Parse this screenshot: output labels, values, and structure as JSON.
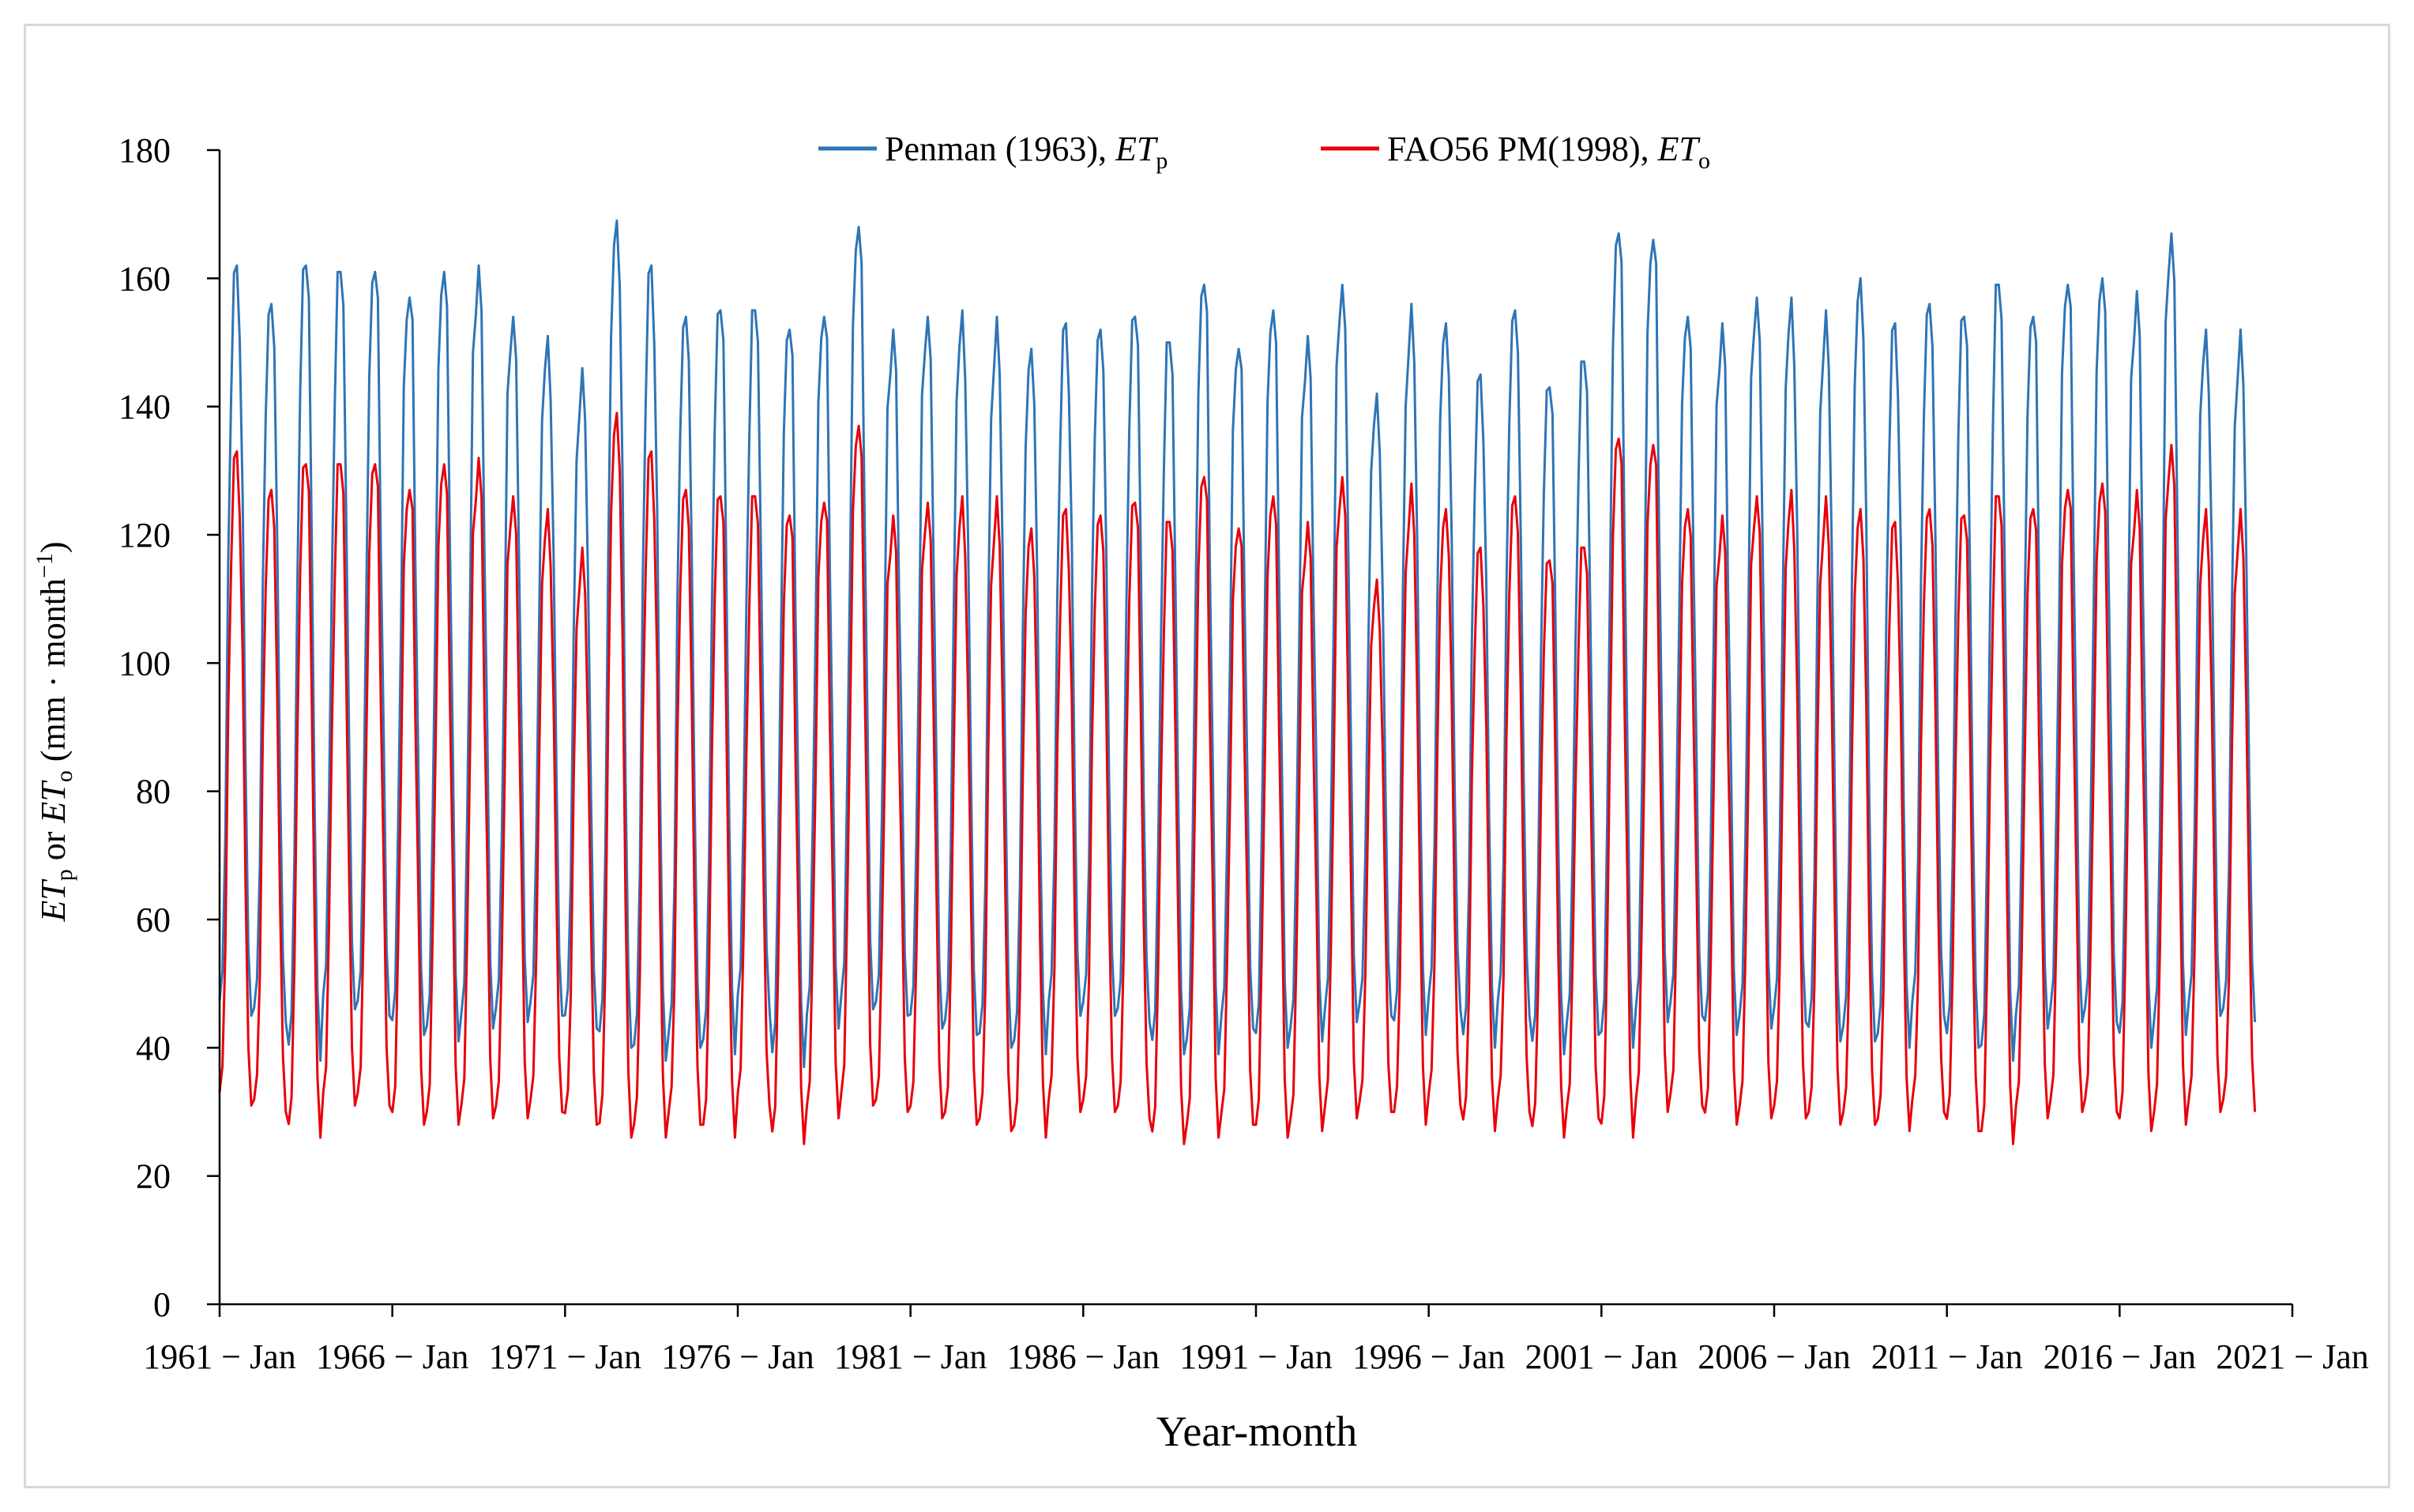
{
  "chart_data": {
    "type": "line",
    "title": "",
    "xlabel": "Year-month",
    "ylabel": {
      "part1": "ET",
      "sub1": "p",
      "part2": " or ",
      "part3": "ET",
      "sub2": "o",
      "part4": " (mm · month",
      "sup": "−1",
      "part5": ")"
    },
    "ylim": [
      0,
      180
    ],
    "yticks": [
      0,
      20,
      40,
      60,
      80,
      100,
      120,
      140,
      160,
      180
    ],
    "xlim_months": [
      0,
      720
    ],
    "xticks": [
      {
        "label": "1961 − Jan",
        "month_index": 0
      },
      {
        "label": "1966 − Jan",
        "month_index": 60
      },
      {
        "label": "1971 − Jan",
        "month_index": 120
      },
      {
        "label": "1976 − Jan",
        "month_index": 180
      },
      {
        "label": "1981 − Jan",
        "month_index": 240
      },
      {
        "label": "1986 − Jan",
        "month_index": 300
      },
      {
        "label": "1991 − Jan",
        "month_index": 360
      },
      {
        "label": "1996 − Jan",
        "month_index": 420
      },
      {
        "label": "2001 − Jan",
        "month_index": 480
      },
      {
        "label": "2006 − Jan",
        "month_index": 540
      },
      {
        "label": "2011 − Jan",
        "month_index": 600
      },
      {
        "label": "2016 − Jan",
        "month_index": 660
      },
      {
        "label": "2021 − Jan",
        "month_index": 720
      }
    ],
    "years": [
      1961,
      1962,
      1963,
      1964,
      1965,
      1966,
      1967,
      1968,
      1969,
      1970,
      1971,
      1972,
      1973,
      1974,
      1975,
      1976,
      1977,
      1978,
      1979,
      1980,
      1981,
      1982,
      1983,
      1984,
      1985,
      1986,
      1987,
      1988,
      1989,
      1990,
      1991,
      1992,
      1993,
      1994,
      1995,
      1996,
      1997,
      1998,
      1999,
      2000,
      2001,
      2002,
      2003,
      2004,
      2005,
      2006,
      2007,
      2008,
      2009,
      2010,
      2011,
      2012,
      2013,
      2014,
      2015,
      2016,
      2017,
      2018,
      2019
    ],
    "series": [
      {
        "name": "Penman (1963), ETp",
        "legend": {
          "main": "Penman (1963), ",
          "it": "ET",
          "sub": "p"
        },
        "color": "#2e75b6",
        "annual_summer_peak": [
          162,
          156,
          162,
          161,
          161,
          157,
          161,
          162,
          154,
          151,
          146,
          169,
          162,
          154,
          155,
          155,
          152,
          154,
          168,
          152,
          154,
          155,
          154,
          149,
          153,
          152,
          154,
          150,
          159,
          149,
          155,
          151,
          159,
          142,
          156,
          153,
          145,
          155,
          143,
          147,
          167,
          166,
          154,
          153,
          157,
          157,
          155,
          160,
          153,
          156,
          154,
          159,
          154,
          159,
          160,
          158,
          167,
          152,
          152
        ],
        "annual_winter_min": [
          45,
          44,
          38,
          46,
          45,
          42,
          41,
          43,
          44,
          45,
          43,
          40,
          38,
          40,
          39,
          46,
          37,
          43,
          46,
          45,
          43,
          42,
          40,
          39,
          45,
          45,
          44,
          39,
          39,
          43,
          40,
          41,
          44,
          45,
          42,
          46,
          40,
          45,
          39,
          42,
          40,
          44,
          45,
          42,
          43,
          44,
          41,
          41,
          40,
          45,
          40,
          38,
          43,
          44,
          44,
          40,
          42,
          45,
          44
        ]
      },
      {
        "name": "FAO56 PM(1998), ETo",
        "legend": {
          "main": "FAO56 PM(1998), ",
          "it": "ET",
          "sub": "o"
        },
        "color": "#e8000b",
        "annual_summer_peak": [
          133,
          127,
          131,
          131,
          131,
          127,
          131,
          132,
          126,
          124,
          118,
          139,
          133,
          127,
          126,
          126,
          123,
          125,
          137,
          123,
          125,
          126,
          126,
          121,
          124,
          123,
          125,
          122,
          129,
          121,
          126,
          122,
          129,
          113,
          128,
          124,
          118,
          126,
          116,
          118,
          135,
          134,
          124,
          123,
          126,
          127,
          126,
          124,
          122,
          124,
          123,
          126,
          124,
          127,
          128,
          127,
          134,
          124,
          124
        ],
        "annual_winter_min": [
          31,
          30,
          26,
          31,
          31,
          28,
          28,
          29,
          29,
          30,
          28,
          26,
          26,
          28,
          26,
          31,
          25,
          29,
          31,
          30,
          29,
          28,
          27,
          26,
          30,
          30,
          29,
          25,
          26,
          28,
          26,
          27,
          29,
          30,
          28,
          31,
          27,
          30,
          26,
          29,
          26,
          30,
          31,
          28,
          29,
          29,
          28,
          28,
          27,
          30,
          27,
          25,
          29,
          30,
          30,
          27,
          28,
          30,
          30
        ]
      }
    ],
    "legend_position": "top-center"
  }
}
